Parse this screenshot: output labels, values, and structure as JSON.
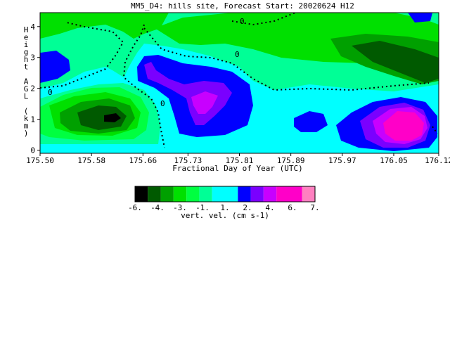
{
  "chart_data": {
    "type": "heatmap",
    "title": "MM5_D4: hills site,  Forecast Start: 20020624 H12",
    "xlabel": "Fractional Day of Year (UTC)",
    "ylabel_letters": [
      "H",
      "e",
      "i",
      "g",
      "h",
      "t",
      " ",
      "A",
      "G",
      "L",
      " ",
      "(",
      "k",
      "m",
      ")"
    ],
    "x_ticks": [
      "175.50",
      "175.58",
      "175.66",
      "175.73",
      "175.81",
      "175.89",
      "175.97",
      "176.05",
      "176.12"
    ],
    "x_tick_values": [
      175.5,
      175.58,
      175.66,
      175.73,
      175.81,
      175.89,
      175.97,
      176.05,
      176.12
    ],
    "xlim": [
      175.5,
      176.12
    ],
    "y_ticks": [
      "0",
      "1",
      "2",
      "3",
      "4"
    ],
    "y_tick_values": [
      0,
      1,
      2,
      3,
      4
    ],
    "ylim": [
      -0.1,
      4.45
    ],
    "zero_contour_labels": [
      "0",
      "0",
      "0",
      "0"
    ],
    "colorbar": {
      "label": "vert. vel. (cm s-1)",
      "tick_labels": [
        "-6.",
        "-4.",
        "-3.",
        "-1.",
        "1.",
        "2.",
        "4.",
        "6.",
        "7."
      ],
      "bins": [
        {
          "from": -7,
          "to": -6,
          "color": "#000000"
        },
        {
          "from": -6,
          "to": -5,
          "color": "#005a00"
        },
        {
          "from": -5,
          "to": -4,
          "color": "#00a000"
        },
        {
          "from": -4,
          "to": -3,
          "color": "#00e000"
        },
        {
          "from": -3,
          "to": -2,
          "color": "#00ff40"
        },
        {
          "from": -2,
          "to": -1,
          "color": "#00ff96"
        },
        {
          "from": -1,
          "to": 1,
          "color": "#00ffff"
        },
        {
          "from": 1,
          "to": 2,
          "color": "#0000ff"
        },
        {
          "from": 2,
          "to": 3,
          "color": "#7a00ff"
        },
        {
          "from": 3,
          "to": 4,
          "color": "#c800ff"
        },
        {
          "from": 4,
          "to": 6,
          "color": "#ff00c8"
        },
        {
          "from": 6,
          "to": 7,
          "color": "#ff80c0"
        }
      ]
    },
    "regions": [
      {
        "name": "neg-left-core",
        "value": -6.5,
        "color": "#000000"
      },
      {
        "name": "neg-left-strong",
        "value": -5.5,
        "color": "#005a00"
      },
      {
        "name": "neg-left-mid",
        "value": -4.5,
        "color": "#00a000"
      },
      {
        "name": "neg-right-upper",
        "value": -4.5,
        "color": "#00a000"
      },
      {
        "name": "neg-right-upper-core",
        "value": -5.5,
        "color": "#005a00"
      },
      {
        "name": "pos-center",
        "value": 1.5,
        "color": "#0000ff"
      },
      {
        "name": "pos-center-core",
        "value": 2.5,
        "color": "#7a00ff"
      },
      {
        "name": "pos-right-lower",
        "value": 1.5,
        "color": "#0000ff"
      },
      {
        "name": "pos-right-lower-core",
        "value": 5,
        "color": "#ff00c8"
      }
    ]
  }
}
